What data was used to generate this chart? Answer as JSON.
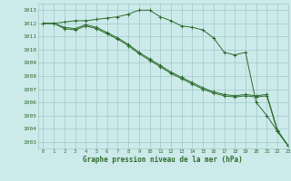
{
  "title": "Graphe pression niveau de la mer (hPa)",
  "background_color": "#cdeaea",
  "plot_bg_color": "#cdeaea",
  "grid_color": "#9dc8c8",
  "line_color": "#2d6b2d",
  "ylim": [
    1002.5,
    1013.5
  ],
  "xlim": [
    -0.5,
    23
  ],
  "yticks": [
    1003,
    1004,
    1005,
    1006,
    1007,
    1008,
    1009,
    1010,
    1011,
    1012,
    1013
  ],
  "xticks": [
    0,
    1,
    2,
    3,
    4,
    5,
    6,
    7,
    8,
    9,
    10,
    11,
    12,
    13,
    14,
    15,
    16,
    17,
    18,
    19,
    20,
    21,
    22,
    23
  ],
  "series": [
    {
      "x": [
        0,
        1,
        2,
        3,
        4,
        5,
        6,
        7,
        8,
        9,
        10,
        11,
        12,
        13,
        14,
        15,
        16,
        17,
        18,
        19,
        20,
        21,
        22,
        23
      ],
      "y": [
        1012.0,
        1012.0,
        1012.1,
        1012.2,
        1012.2,
        1012.3,
        1012.4,
        1012.5,
        1012.7,
        1013.0,
        1013.0,
        1012.5,
        1012.2,
        1011.8,
        1011.7,
        1011.5,
        1010.9,
        1009.8,
        1009.6,
        1009.8,
        1006.0,
        1005.0,
        1003.8,
        1002.7
      ]
    },
    {
      "x": [
        0,
        1,
        2,
        3,
        4,
        5,
        6,
        7,
        8,
        9,
        10,
        11,
        12,
        13,
        14,
        15,
        16,
        17,
        18,
        19,
        20,
        21,
        22,
        23
      ],
      "y": [
        1012.0,
        1012.0,
        1011.6,
        1011.5,
        1011.8,
        1011.6,
        1011.2,
        1010.8,
        1010.3,
        1009.7,
        1009.2,
        1008.7,
        1008.2,
        1007.8,
        1007.4,
        1007.0,
        1006.7,
        1006.5,
        1006.4,
        1006.5,
        1006.4,
        1006.5,
        1003.8,
        1002.7
      ]
    },
    {
      "x": [
        0,
        1,
        2,
        3,
        4,
        5,
        6,
        7,
        8,
        9,
        10,
        11,
        12,
        13,
        14,
        15,
        16,
        17,
        18,
        19,
        20,
        21,
        22,
        23
      ],
      "y": [
        1012.0,
        1012.0,
        1011.7,
        1011.6,
        1011.9,
        1011.7,
        1011.3,
        1010.9,
        1010.4,
        1009.8,
        1009.3,
        1008.8,
        1008.3,
        1007.9,
        1007.5,
        1007.1,
        1006.8,
        1006.6,
        1006.5,
        1006.6,
        1006.5,
        1006.6,
        1003.9,
        1002.7
      ]
    }
  ]
}
